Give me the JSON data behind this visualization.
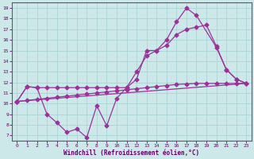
{
  "xlabel": "Windchill (Refroidissement éolien,°C)",
  "bg_color": "#cce8e8",
  "line_color": "#993399",
  "grid_color": "#aad4d4",
  "text_color": "#660066",
  "axis_color": "#993399",
  "xlim": [
    -0.5,
    23.5
  ],
  "ylim": [
    6.5,
    19.5
  ],
  "xticks": [
    0,
    1,
    2,
    3,
    4,
    5,
    6,
    7,
    8,
    9,
    10,
    11,
    12,
    13,
    14,
    15,
    16,
    17,
    18,
    19,
    20,
    21,
    22,
    23
  ],
  "yticks": [
    7,
    8,
    9,
    10,
    11,
    12,
    13,
    14,
    15,
    16,
    17,
    18,
    19
  ],
  "line1_x": [
    0,
    1,
    2,
    3,
    4,
    5,
    6,
    7,
    8,
    9,
    10,
    11,
    12,
    13,
    14,
    15,
    16,
    17,
    18,
    20,
    21,
    22,
    23
  ],
  "line1_y": [
    10.2,
    11.6,
    11.5,
    9.0,
    8.2,
    7.3,
    7.6,
    6.8,
    9.8,
    7.9,
    10.5,
    11.5,
    12.3,
    15.0,
    15.0,
    16.0,
    17.7,
    19.0,
    18.3,
    15.3,
    13.2,
    12.3,
    11.9
  ],
  "line2_x": [
    0,
    1,
    2,
    3,
    4,
    5,
    6,
    7,
    8,
    9,
    10,
    11,
    12,
    13,
    14,
    15,
    16,
    17,
    18,
    19,
    20,
    21,
    22,
    23
  ],
  "line2_y": [
    10.2,
    11.6,
    11.5,
    11.5,
    11.5,
    11.5,
    11.5,
    11.5,
    11.5,
    11.5,
    11.5,
    11.5,
    13.0,
    14.5,
    15.0,
    15.5,
    16.5,
    17.0,
    17.2,
    17.4,
    15.4,
    13.2,
    12.3,
    11.9
  ],
  "line3_x": [
    0,
    23
  ],
  "line3_y": [
    10.2,
    11.9
  ],
  "line4_x": [
    0,
    1,
    2,
    3,
    4,
    5,
    6,
    7,
    8,
    9,
    10,
    11,
    12,
    13,
    14,
    15,
    16,
    17,
    18,
    19,
    20,
    21,
    22,
    23
  ],
  "line4_y": [
    10.2,
    10.3,
    10.4,
    10.5,
    10.6,
    10.7,
    10.8,
    10.9,
    11.0,
    11.1,
    11.2,
    11.3,
    11.4,
    11.5,
    11.6,
    11.7,
    11.8,
    11.85,
    11.9,
    11.9,
    11.9,
    11.9,
    11.9,
    11.9
  ]
}
